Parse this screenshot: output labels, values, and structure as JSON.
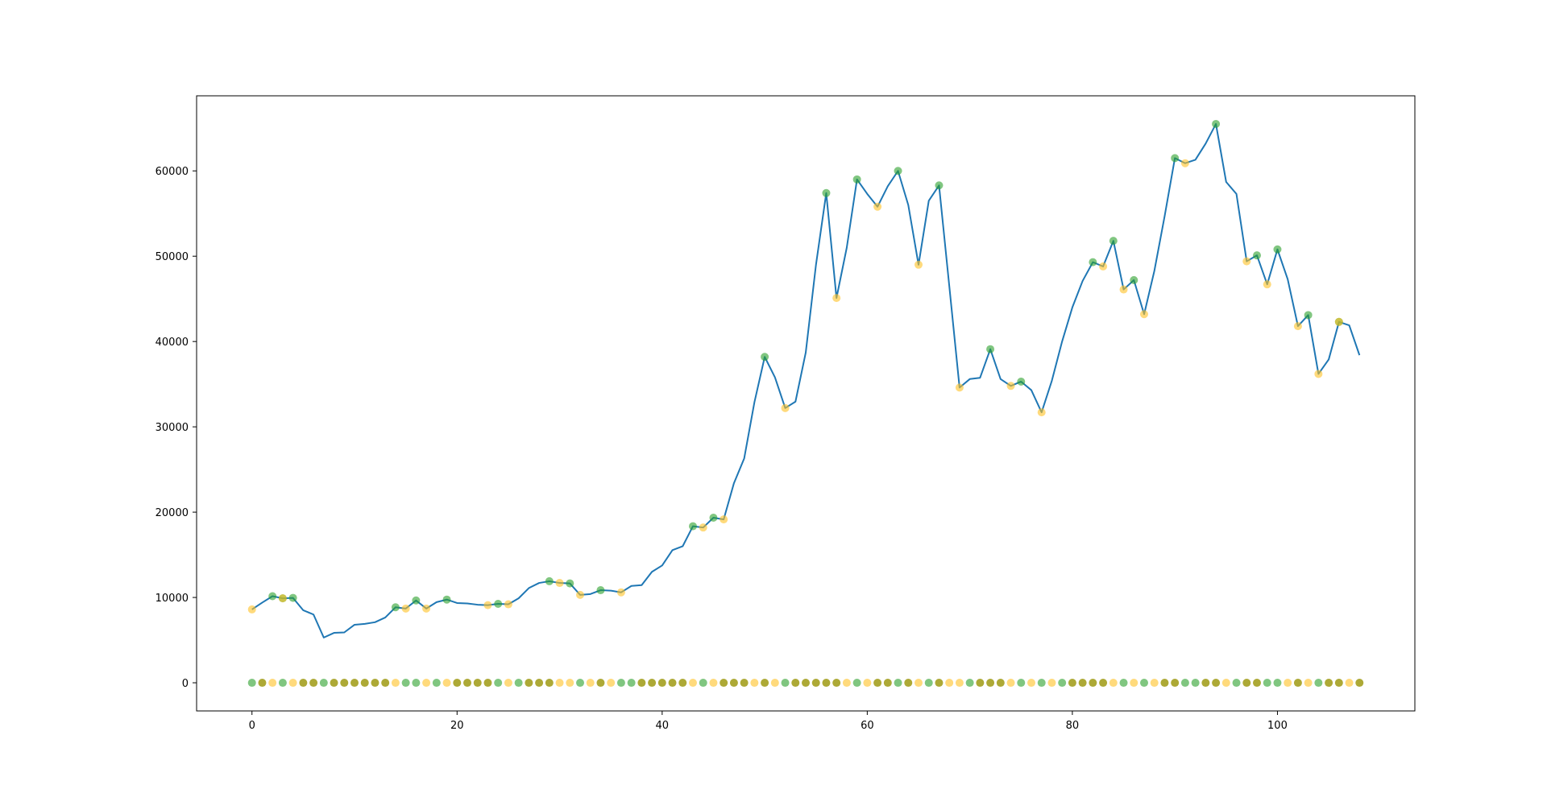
{
  "chart_data": {
    "type": "line",
    "title": "",
    "xlabel": "",
    "ylabel": "",
    "xlim": [
      -5.4,
      113.4
    ],
    "ylim": [
      -3300,
      68800
    ],
    "x_ticks": [
      0,
      20,
      40,
      60,
      80,
      100
    ],
    "y_ticks": [
      0,
      10000,
      20000,
      30000,
      40000,
      50000,
      60000
    ],
    "grid": false,
    "legend": "none",
    "colors": {
      "line": "#1f77b4",
      "marker_green": "#2ca02c",
      "marker_yellow": "#ffc125",
      "marker_olive": "#a4a020"
    },
    "series": [
      {
        "values": [
          8600,
          9400,
          10150,
          9900,
          9950,
          8500,
          8000,
          5300,
          5850,
          5900,
          6800,
          6900,
          7100,
          7650,
          8850,
          8700,
          9650,
          8700,
          9450,
          9750,
          9350,
          9300,
          9150,
          9100,
          9250,
          9200,
          9900,
          11100,
          11700,
          11900,
          11700,
          11650,
          10300,
          10400,
          10850,
          10800,
          10600,
          11350,
          11450,
          13000,
          13750,
          15550,
          16000,
          18350,
          18200,
          19350,
          19150,
          23400,
          26300,
          32900,
          38200,
          35800,
          32200,
          32950,
          38700,
          49000,
          57400,
          45100,
          51000,
          59000,
          57300,
          55800,
          58200,
          60000,
          56000,
          49000,
          56500,
          58300,
          46500,
          34600,
          35600,
          35750,
          39100,
          35600,
          34800,
          35300,
          34300,
          31700,
          35400,
          40000,
          44000,
          47100,
          49300,
          48800,
          51800,
          46100,
          47200,
          43200,
          48300,
          54700,
          61500,
          60900,
          61300,
          63200,
          65500,
          58700,
          57300,
          49400,
          50100,
          46700,
          50800,
          47300,
          41800,
          43100,
          36200,
          37900,
          42300,
          41900,
          38400
        ],
        "markers": {
          "green_points": [
            2,
            3,
            4,
            14,
            16,
            19,
            24,
            29,
            31,
            34,
            43,
            45,
            50,
            56,
            59,
            63,
            67,
            72,
            75,
            82,
            84,
            86,
            90,
            94,
            98,
            100,
            103,
            106
          ],
          "yellow_points": [
            0,
            3,
            15,
            17,
            23,
            25,
            30,
            32,
            36,
            44,
            46,
            52,
            57,
            61,
            65,
            69,
            74,
            77,
            83,
            85,
            87,
            91,
            97,
            99,
            102,
            104,
            106
          ]
        }
      }
    ],
    "baseline_markers": {
      "y": 0,
      "x_range": [
        0,
        108
      ],
      "pattern": "GOYGYOOGOOOOOOYGGYGYOOOOGYGOOOYYGYOYGGOOOOOYGYOOOYOYGOOOOOYGYOOGOYGOYYGOOOYGYGYGOOOOYGYGYOOGGOOYGOOGGYOYGOOYOYO"
    }
  }
}
